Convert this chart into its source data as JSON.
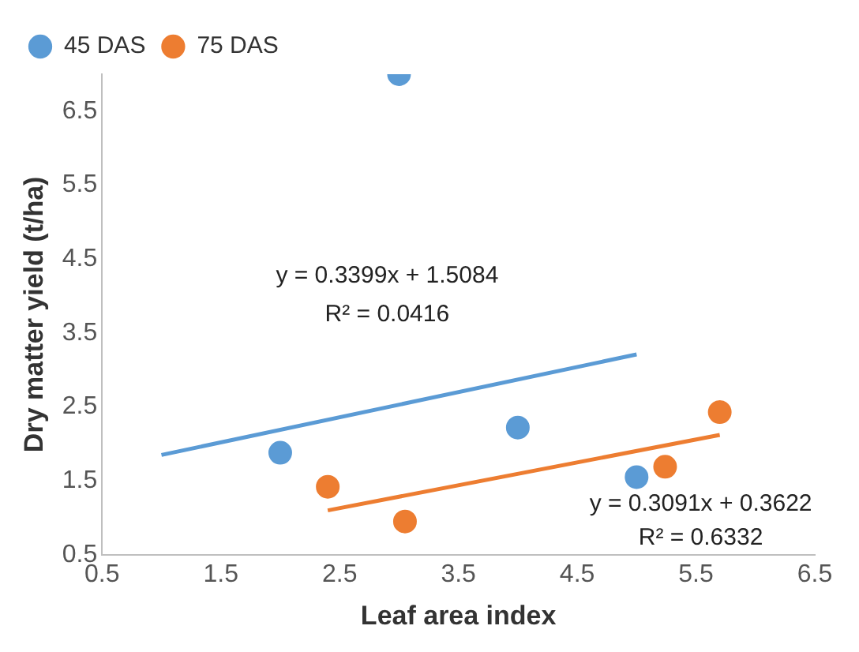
{
  "chart_data": {
    "type": "scatter",
    "xlabel": "Leaf area index",
    "ylabel": "Dry matter yield (t/ha)",
    "xlim": [
      0.5,
      6.5
    ],
    "xticks": [
      0.5,
      1.5,
      2.5,
      3.5,
      4.5,
      5.5,
      6.5
    ],
    "ylim": [
      0.5,
      7
    ],
    "yticks": [
      0.5,
      1.5,
      2.5,
      3.5,
      4.5,
      5.5,
      6.5
    ],
    "grid": false,
    "legend": "top left",
    "marker": "circle",
    "series": [
      {
        "name": "45 DAS",
        "color": "#5b9bd5",
        "x": [
          2,
          3,
          4,
          5
        ],
        "values": [
          1.88,
          7.0,
          2.22,
          1.55
        ]
      },
      {
        "name": "75 DAS",
        "color": "#ed7d31",
        "x": [
          2.4,
          3.05,
          5.24,
          5.7
        ],
        "values": [
          1.42,
          0.95,
          1.69,
          2.43
        ]
      },
      {
        "type": "line",
        "color": "#5b9bd5",
        "marker": "none",
        "x": [
          1,
          5
        ],
        "values": [
          1.85,
          3.21
        ]
      },
      {
        "type": "line",
        "color": "#ed7d31",
        "marker": "none",
        "x": [
          2.4,
          5.7
        ],
        "values": [
          1.1,
          2.12
        ]
      }
    ],
    "annotations": [
      "y = 0.3399x + 1.5084",
      "R² = 0.0416",
      "y = 0.3091x + 0.3622",
      "R² = 0.6332"
    ]
  }
}
